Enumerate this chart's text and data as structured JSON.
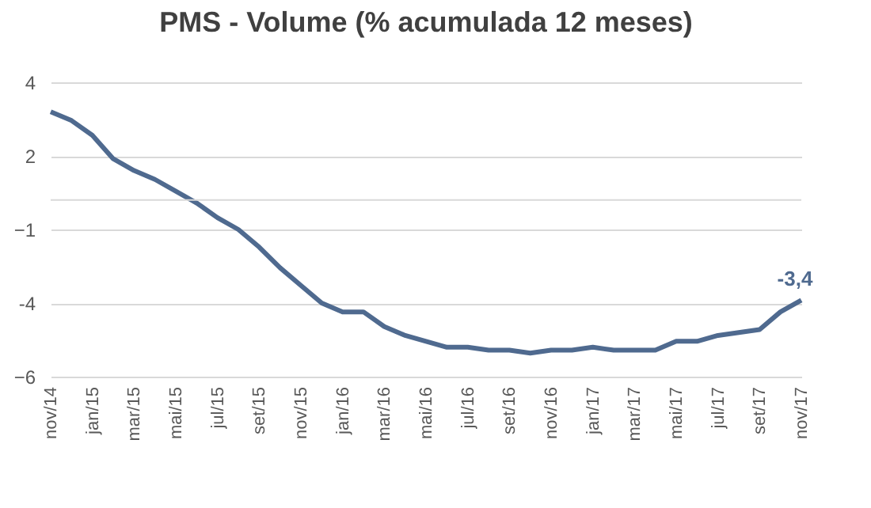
{
  "chart_data": {
    "type": "line",
    "title": "PMS - Volume (% acumulada 12 meses)",
    "categories": [
      "nov/14",
      null,
      "jan/15",
      null,
      "mar/15",
      null,
      "mai/15",
      null,
      "jul/15",
      null,
      "set/15",
      null,
      "nov/15",
      null,
      "jan/16",
      null,
      "mar/16",
      null,
      "mai/16",
      null,
      "jul/16",
      null,
      "set/16",
      null,
      "nov/16",
      null,
      "jan/17",
      null,
      "mar/17",
      null,
      "mai/17",
      null,
      "jul/17",
      null,
      "set/17",
      null,
      "nov/17"
    ],
    "series": [
      {
        "color": "#4f6a8f",
        "values": [
          3.0,
          2.7,
          2.2,
          1.4,
          1.0,
          0.7,
          0.3,
          -0.1,
          -0.6,
          -1.0,
          -1.6,
          -2.3,
          -2.9,
          -3.5,
          -3.8,
          -3.8,
          -4.3,
          -4.6,
          -4.8,
          -5.0,
          -5.0,
          -5.1,
          -5.1,
          -5.2,
          -5.1,
          -5.1,
          -5.0,
          -5.1,
          -5.1,
          -5.1,
          -4.8,
          -4.8,
          -4.6,
          -4.5,
          -4.4,
          -3.8,
          -3.4
        ],
        "value_labels": [
          null,
          null,
          null,
          null,
          null,
          null,
          null,
          null,
          null,
          null,
          null,
          null,
          null,
          null,
          null,
          null,
          null,
          null,
          null,
          null,
          null,
          null,
          null,
          null,
          null,
          null,
          null,
          null,
          null,
          null,
          null,
          null,
          null,
          null,
          null,
          null,
          "-3,4"
        ]
      }
    ],
    "ylim": [
      -6,
      4
    ],
    "yticks": [
      4,
      {
        "value": 1.5,
        "label": "2"
      },
      -1,
      {
        "value": -3.5,
        "label": "-4"
      },
      -6
    ],
    "grid": "y",
    "ref_lines": [
      {
        "axis": "y",
        "value": 0,
        "color": "#d9d9d9"
      }
    ],
    "marker": "none",
    "line_style": "solid"
  }
}
